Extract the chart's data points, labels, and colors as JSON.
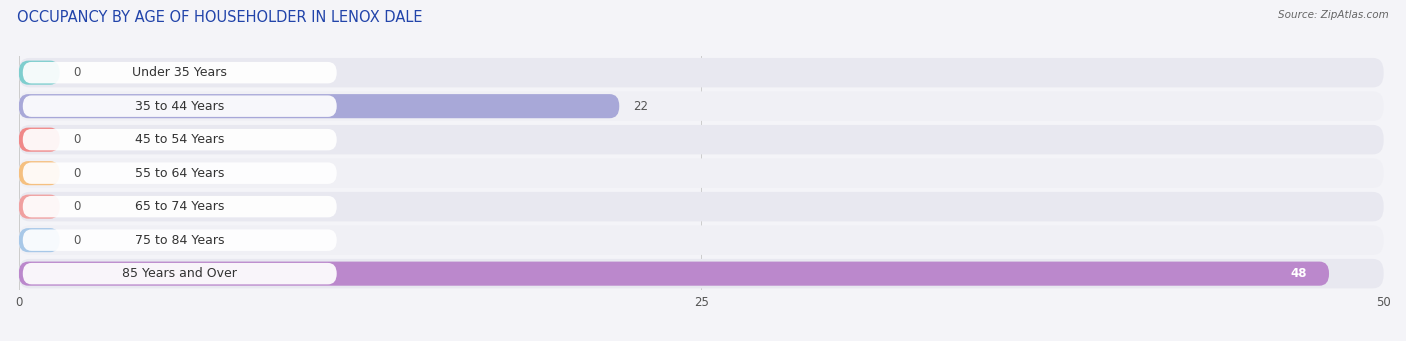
{
  "title": "OCCUPANCY BY AGE OF HOUSEHOLDER IN LENOX DALE",
  "source": "Source: ZipAtlas.com",
  "categories": [
    "Under 35 Years",
    "35 to 44 Years",
    "45 to 54 Years",
    "55 to 64 Years",
    "65 to 74 Years",
    "75 to 84 Years",
    "85 Years and Over"
  ],
  "values": [
    0,
    22,
    0,
    0,
    0,
    0,
    48
  ],
  "bar_colors": [
    "#7ecece",
    "#a8a8d8",
    "#f08888",
    "#f5c080",
    "#f0a0a0",
    "#a8c8e8",
    "#bb88cc"
  ],
  "xlim": [
    0,
    50
  ],
  "xticks": [
    0,
    25,
    50
  ],
  "row_bg_light": "#f0f0f5",
  "row_bg_dark": "#e8e8f0",
  "background_color": "#f4f4f8",
  "title_fontsize": 10.5,
  "label_fontsize": 9,
  "value_fontsize": 8.5,
  "source_fontsize": 7.5
}
